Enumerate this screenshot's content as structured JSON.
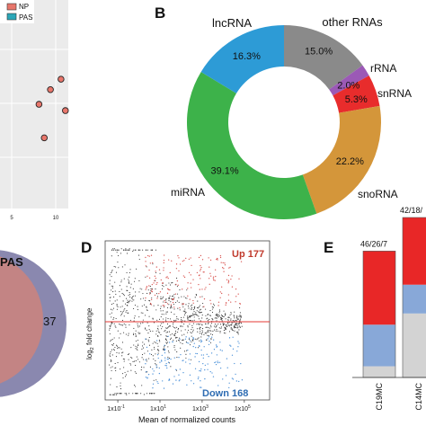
{
  "panels": {
    "a": {
      "legend": [
        "NP",
        "PAS"
      ],
      "x_ticks": [
        "5",
        "10"
      ]
    },
    "b": {
      "letter": "B"
    },
    "c": {
      "label": "PAS",
      "count": "37"
    },
    "d": {
      "letter": "D",
      "up": "Up 177",
      "down": "Down 168",
      "ylabel_main": "log",
      "ylabel_sub": "2",
      "ylabel_rest": " fold change",
      "xlabel": "Mean of normalized counts",
      "x_ticks": [
        "1x10",
        "1x10",
        "1x10",
        "1x10"
      ],
      "x_tick_exp": [
        "-1",
        "1",
        "3",
        "5"
      ]
    },
    "e": {
      "letter": "E",
      "top_labels": [
        "46/26/7",
        "42/18/"
      ],
      "categories": [
        "C19MC",
        "C14MC"
      ]
    }
  },
  "colors": {
    "np": "#e8766b",
    "pas": "#2aa7b8",
    "lncrna": "#2d9bd6",
    "other": "#8a8a8a",
    "rrna": "#9b59b6",
    "snrna": "#e82c2c",
    "snorna": "#d4963a",
    "mirna": "#3db24a",
    "up_points": "#d9534f",
    "down_points": "#4a90d9",
    "ns_points": "#222222",
    "bar_red": "#e82727",
    "bar_blue": "#88a8d8",
    "bar_gray": "#d3d3d3"
  },
  "chart_data": [
    {
      "type": "scatter",
      "panel": "A",
      "legend": [
        "NP",
        "PAS"
      ],
      "x_ticks": [
        "5",
        "10"
      ],
      "points": [
        {
          "x": 8.1,
          "y": 5.8
        },
        {
          "x": 9.4,
          "y": 6.5
        },
        {
          "x": 10.6,
          "y": 7.0
        },
        {
          "x": 11.1,
          "y": 5.5
        },
        {
          "x": 8.7,
          "y": 4.2
        }
      ]
    },
    {
      "type": "pie",
      "panel": "B",
      "donut": true,
      "slices": [
        {
          "label": "other RNAs",
          "value": 15.0,
          "text": "15.0%"
        },
        {
          "label": "rRNA",
          "value": 2.0,
          "text": "2.0%"
        },
        {
          "label": "snRNA",
          "value": 5.3,
          "text": "5.3%"
        },
        {
          "label": "snoRNA",
          "value": 22.2,
          "text": "22.2%"
        },
        {
          "label": "miRNA",
          "value": 39.1,
          "text": "39.1%"
        },
        {
          "label": "lncRNA",
          "value": 16.3,
          "text": "16.3%"
        }
      ]
    },
    {
      "type": "scatter",
      "panel": "D",
      "title_up": "Up 177",
      "title_down": "Down 168",
      "xlabel": "Mean of normalized counts",
      "ylabel": "log2 fold change",
      "xscale": "log",
      "xlim_log10": [
        -1.6,
        6.2
      ],
      "ylim": [
        -3,
        3
      ],
      "n_up": 177,
      "n_down": 168
    },
    {
      "type": "bar",
      "panel": "E",
      "stacked": true,
      "categories": [
        "C19MC",
        "C14MC"
      ],
      "top_labels": [
        "46/26/7",
        "42/18/"
      ],
      "series": [
        {
          "color": "red",
          "values": [
            46,
            42
          ]
        },
        {
          "color": "blue",
          "values": [
            26,
            18
          ]
        },
        {
          "color": "gray",
          "values": [
            7,
            40
          ]
        }
      ]
    }
  ]
}
